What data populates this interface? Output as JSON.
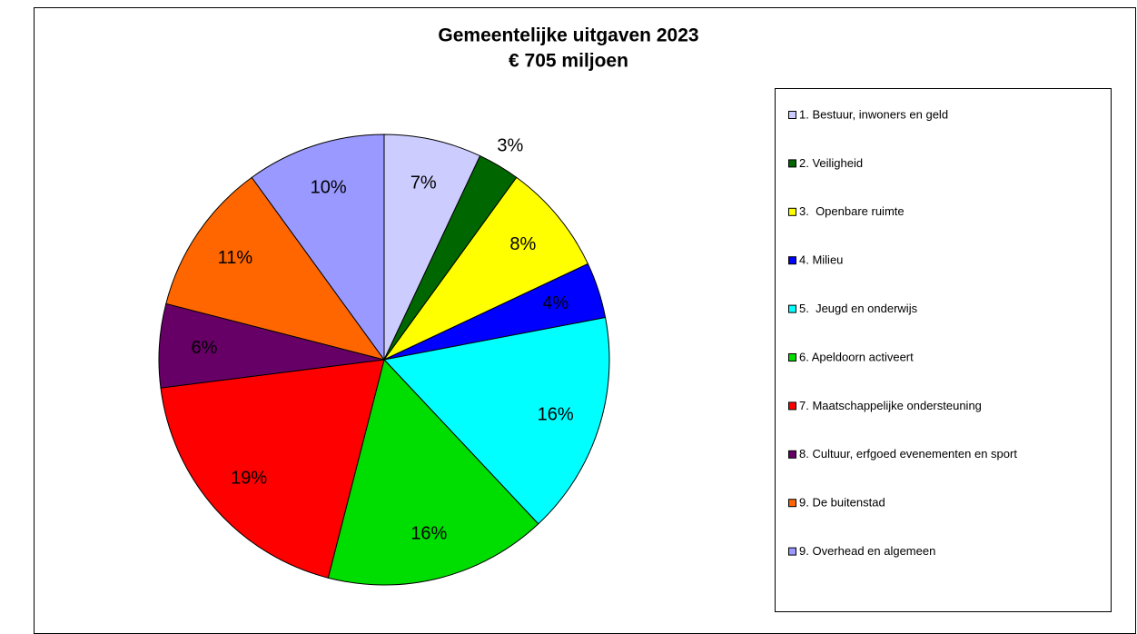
{
  "chart_data": {
    "type": "pie",
    "title": "Gemeentelijke uitgaven 2023",
    "subtitle": "€ 705 miljoen",
    "categories": [
      "1. Bestuur, inwoners en geld",
      "2. Veiligheid",
      "3.  Openbare ruimte",
      "4. Milieu",
      "5.  Jeugd en onderwijs",
      "6. Apeldoorn activeert",
      "7. Maatschappelijke ondersteuning",
      "8. Cultuur, erfgoed evenementen en sport",
      "9. De buitenstad",
      "9. Overhead en algemeen"
    ],
    "values": [
      7,
      3,
      8,
      4,
      16,
      16,
      19,
      6,
      11,
      10
    ],
    "value_labels": [
      "7%",
      "3%",
      "8%",
      "4%",
      "16%",
      "16%",
      "19%",
      "6%",
      "11%",
      "10%"
    ],
    "colors": [
      "#ccccff",
      "#006600",
      "#ffff00",
      "#0000ff",
      "#00ffff",
      "#00dd00",
      "#ff0000",
      "#660066",
      "#ff6600",
      "#9999ff"
    ],
    "legend": "right"
  }
}
